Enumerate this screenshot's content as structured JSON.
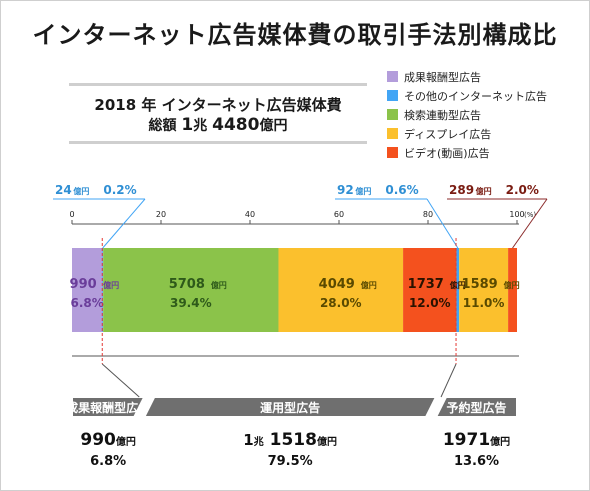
{
  "title": "インターネット広告媒体費の取引手法別構成比",
  "subtitle": "2018 年 インターネット広告媒体費",
  "total": {
    "prefix": "総額",
    "value_a": "1",
    "unit_a": "兆",
    "value_b": "4480",
    "unit_b": "億円"
  },
  "legend": [
    {
      "label": "成果報酬型広告",
      "color": "#b39ddb"
    },
    {
      "label": "その他のインターネット広告",
      "color": "#42a5f5"
    },
    {
      "label": "検索連動型広告",
      "color": "#8bc34a"
    },
    {
      "label": "ディスプレイ広告",
      "color": "#fbc02d"
    },
    {
      "label": "ビデオ(動画)広告",
      "color": "#f4511e"
    }
  ],
  "chart_data": {
    "type": "bar",
    "orientation": "horizontal-stacked-100",
    "xlim": [
      0,
      100
    ],
    "x_ticks": [
      "0",
      "20",
      "40",
      "60",
      "80",
      "100"
    ],
    "x_unit": "(%)",
    "segments": [
      {
        "name": "成果報酬型広告",
        "value": 990,
        "unit": "億円",
        "percent": 6.8,
        "color": "#b39ddb",
        "label_color": "#6a3d9a",
        "value_label": "990",
        "percent_label": "6.8%"
      },
      {
        "name": "その他のインターネット広告",
        "value": 24,
        "unit": "億円",
        "percent": 0.2,
        "color": "#42a5f5",
        "label_color": "#2f8fd4",
        "value_label": "24",
        "percent_label": "0.2%"
      },
      {
        "name": "検索連動型広告",
        "value": 5708,
        "unit": "億円",
        "percent": 39.4,
        "color": "#8bc34a",
        "label_color": "#2e5a1a",
        "value_label": "5708",
        "percent_label": "39.4%"
      },
      {
        "name": "ディスプレイ広告",
        "value": 4049,
        "unit": "億円",
        "percent": 28.0,
        "color": "#fbc02d",
        "label_color": "#5a4a00",
        "value_label": "4049",
        "percent_label": "28.0%"
      },
      {
        "name": "ビデオ(動画)広告",
        "value": 1737,
        "unit": "億円",
        "percent": 12.0,
        "color": "#f4511e",
        "label_color": "#2a1200",
        "value_label": "1737",
        "percent_label": "12.0%"
      },
      {
        "name": "その他のインターネット広告",
        "value": 92,
        "unit": "億円",
        "percent": 0.6,
        "color": "#42a5f5",
        "label_color": "#2f8fd4",
        "value_label": "92",
        "percent_label": "0.6%"
      },
      {
        "name": "ディスプレイ広告",
        "value": 1589,
        "unit": "億円",
        "percent": 11.0,
        "color": "#fbc02d",
        "label_color": "#5a4a00",
        "value_label": "1589",
        "percent_label": "11.0%"
      },
      {
        "name": "ビデオ(動画)広告",
        "value": 289,
        "unit": "億円",
        "percent": 2.0,
        "color": "#f4511e",
        "label_color": "#7a1c12",
        "value_label": "289",
        "percent_label": "2.0%"
      }
    ],
    "groups": [
      {
        "label": "成果報酬型広告",
        "value_a": "990",
        "unit": "億円",
        "percent": "6.8%",
        "percent_value": 6.8
      },
      {
        "label": "運用型広告",
        "value_prefix": "1",
        "value_prefix_unit": "兆",
        "value_a": "1518",
        "unit": "億円",
        "percent": "79.5%",
        "percent_value": 79.5
      },
      {
        "label": "予約型広告",
        "value_a": "1971",
        "unit": "億円",
        "percent": "13.6%",
        "percent_value": 13.6
      }
    ]
  }
}
